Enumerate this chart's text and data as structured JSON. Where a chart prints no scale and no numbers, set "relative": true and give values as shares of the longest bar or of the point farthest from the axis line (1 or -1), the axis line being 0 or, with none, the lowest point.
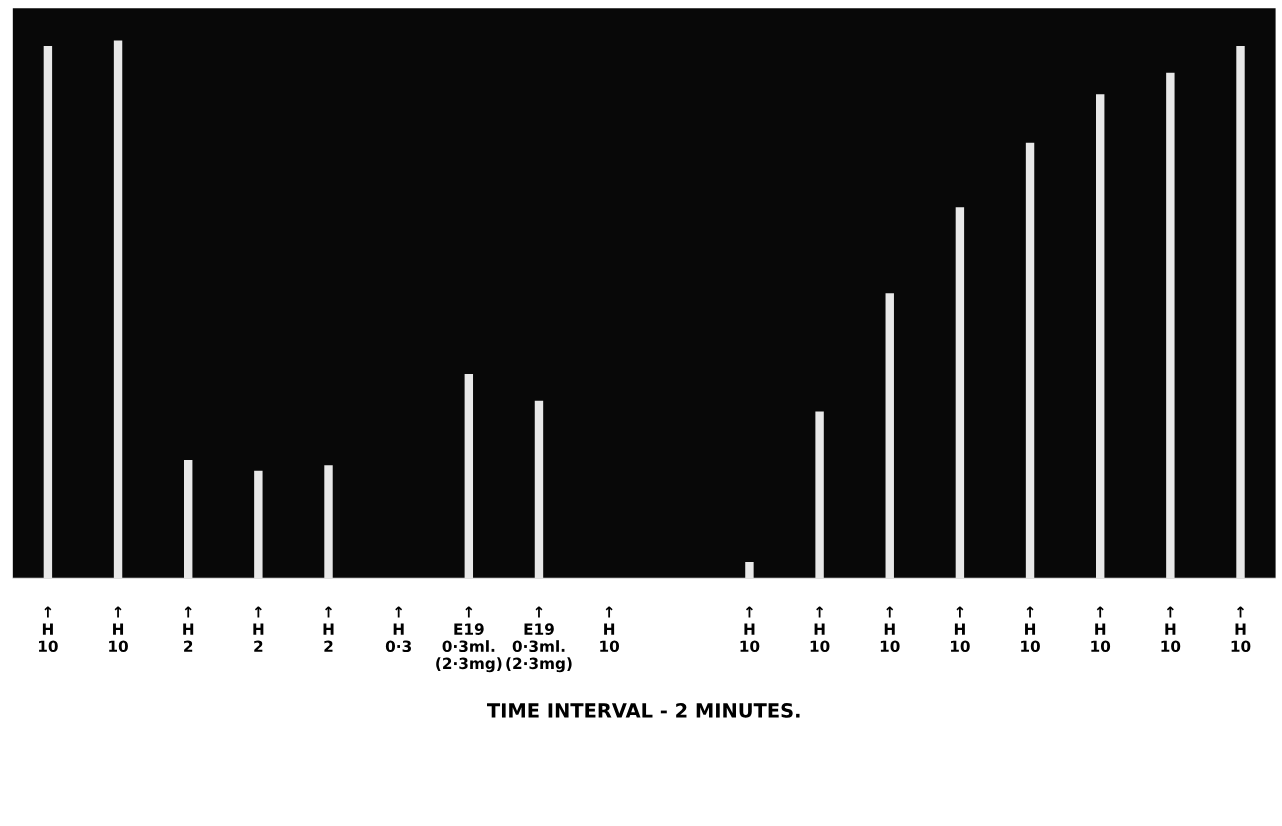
{
  "chart_data": {
    "type": "bar",
    "relative": true,
    "categories": [
      "↑\nH\n10",
      "↑\nH\n10",
      "↑\nH\n2",
      "↑\nH\n2",
      "↑\nH\n2",
      "↑\nH\n0·3",
      "↑\nE19\n0·3ml.\n(2·3mg)",
      "↑\nE19\n0·3ml.\n(2·3mg)",
      "↑\nH\n10",
      null,
      "↑\nH\n10",
      "↑\nH\n10",
      "↑\nH\n10",
      "↑\nH\n10",
      "↑\nH\n10",
      "↑\nH\n10",
      "↑\nH\n10",
      "↑\nH\n10"
    ],
    "values": [
      0.99,
      1,
      0.22,
      0.2,
      0.21,
      0,
      0.38,
      0.33,
      0,
      null,
      0.03,
      0.31,
      0.53,
      0.69,
      0.81,
      0.9,
      0.94,
      0.99
    ],
    "color": "#e8e8e8",
    "xlabel": "TIME INTERVAL - 2 MINUTES.",
    "grid": false
  }
}
